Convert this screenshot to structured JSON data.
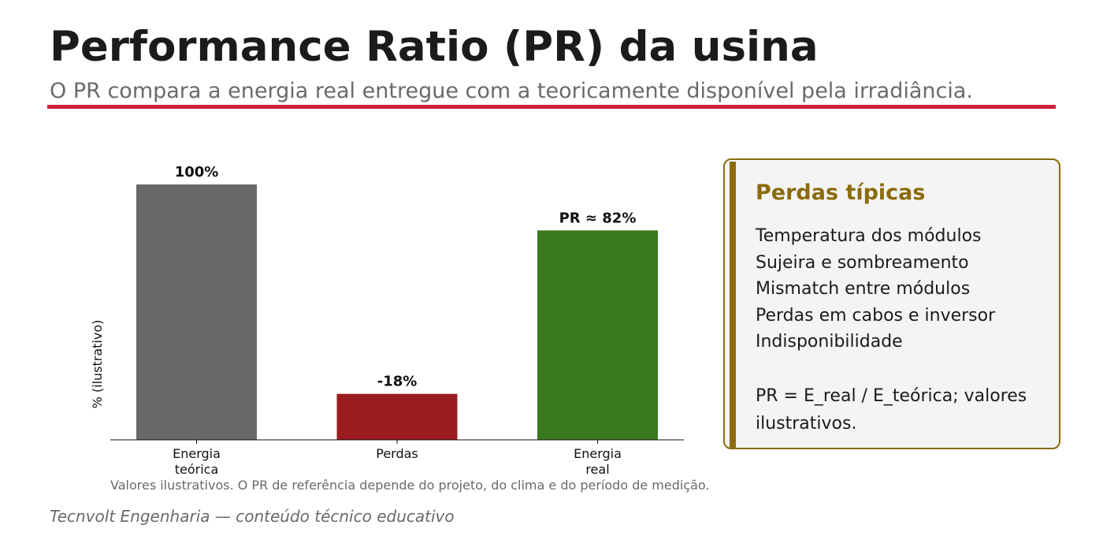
{
  "header": {
    "title": "Performance Ratio (PR) da usina",
    "subtitle": "O PR compara a energia real entregue com a teoricamente disponível pela irradiância."
  },
  "chart_data": {
    "type": "bar",
    "categories": [
      "Energia\nteórica",
      "Perdas",
      "Energia\nreal"
    ],
    "values": [
      100,
      18,
      82
    ],
    "data_labels": [
      "100%",
      "-18%",
      "PR ≈ 82%"
    ],
    "colors": [
      "#696969",
      "#9b1c1f",
      "#3a7a1d"
    ],
    "title": "",
    "xlabel": "",
    "ylabel": "% (ilustrativo)",
    "ylim": [
      0,
      100
    ],
    "grid": false
  },
  "panel": {
    "title": "Perdas típicas",
    "items": [
      "Temperatura dos módulos",
      "Sujeira e sombreamento",
      "Mismatch entre módulos",
      "Perdas em cabos e inversor",
      "Indisponibilidade"
    ],
    "note": "PR = E_real / E_teórica; valores ilustrativos.",
    "accent_color": "#8b6b0a"
  },
  "footnote": "Valores ilustrativos. O PR de referência depende do projeto, do clima e do período de medição.",
  "footer": "Tecnvolt Engenharia — conteúdo técnico educativo"
}
